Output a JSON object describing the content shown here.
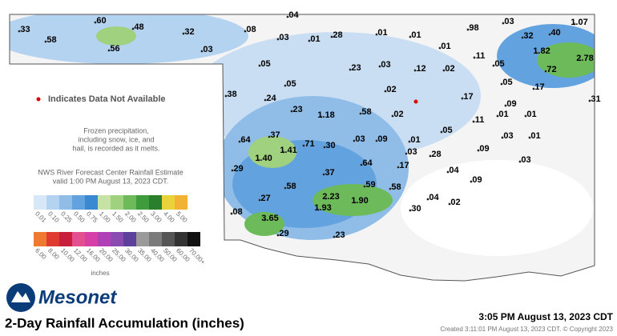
{
  "title": "2-Day Rainfall Accumulation (inches)",
  "timestamp": "3:05 PM August 13, 2023 CDT",
  "created": "Created 3:11:01 PM August 13, 2023 CDT. © Copyright 2023",
  "brand": "Mesonet",
  "missing_note": "Indicates Data Not Available",
  "frozen_note": [
    "Frozen precipitation,",
    "including snow, ice, and",
    "hail, is recorded as it melts."
  ],
  "forecast_note": [
    "NWS River Forecast Center Rainfall Estimate",
    "valid 1:00 PM August 13, 2023 CDT."
  ],
  "legend": {
    "unit": "inches",
    "row1": [
      {
        "label": "0.01",
        "color": "#d6e8f7"
      },
      {
        "label": "0.10",
        "color": "#b4d3f0"
      },
      {
        "label": "0.25",
        "color": "#8fbde8"
      },
      {
        "label": "0.50",
        "color": "#62a2de"
      },
      {
        "label": "0.75",
        "color": "#3a88d2"
      },
      {
        "label": "1.00",
        "color": "#c6e3a5"
      },
      {
        "label": "1.50",
        "color": "#9fd17e"
      },
      {
        "label": "2.00",
        "color": "#6dba5a"
      },
      {
        "label": "2.50",
        "color": "#3f9c3d"
      },
      {
        "label": "3.00",
        "color": "#2a7f2c"
      },
      {
        "label": "4.00",
        "color": "#e8d43a"
      },
      {
        "label": "5.00",
        "color": "#f2b233"
      }
    ],
    "row2": [
      {
        "label": "6.00",
        "color": "#ee7a32"
      },
      {
        "label": "8.00",
        "color": "#e03b2f"
      },
      {
        "label": "10.00",
        "color": "#c81f3c"
      },
      {
        "label": "12.00",
        "color": "#e44f8f"
      },
      {
        "label": "16.00",
        "color": "#d63fa8"
      },
      {
        "label": "20.00",
        "color": "#b13fb5"
      },
      {
        "label": "25.00",
        "color": "#8a4bb0"
      },
      {
        "label": "30.00",
        "color": "#5d3f9c"
      },
      {
        "label": "35.00",
        "color": "#9a9a9a"
      },
      {
        "label": "40.00",
        "color": "#7a7a7a"
      },
      {
        "label": "50.00",
        "color": "#555555"
      },
      {
        "label": "60.00",
        "color": "#333333"
      },
      {
        "label": "70.00+",
        "color": "#111111"
      }
    ]
  },
  "stations": [
    ".33",
    ".58",
    ".60",
    ".48",
    ".56",
    ".32",
    ".03",
    ".08",
    ".04",
    ".03",
    ".01",
    ".28",
    ".01",
    ".01",
    ".98",
    ".03",
    "1.07",
    ".32",
    ".40",
    ".01",
    "1.82",
    ".72",
    "2.78",
    ".05",
    ".23",
    ".03",
    ".12",
    ".02",
    ".11",
    ".05",
    ".05",
    ".17",
    ".05",
    ".02",
    ".38",
    ".24",
    ".17",
    ".09",
    ".31",
    ".23",
    "1.18",
    ".58",
    ".02",
    ".11",
    ".01",
    ".01",
    ".64",
    ".37",
    ".71",
    ".30",
    ".03",
    ".09",
    ".01",
    ".05",
    ".03",
    ".01",
    "1.41",
    "1.40",
    ".03",
    ".28",
    ".09",
    ".64",
    ".17",
    ".03",
    ".29",
    ".37",
    ".04",
    ".09",
    ".58",
    ".59",
    ".58",
    ".04",
    ".02",
    ".27",
    "2.23",
    "1.90",
    "1.93",
    ".30",
    ".08",
    "3.65",
    ".29",
    ".23"
  ]
}
